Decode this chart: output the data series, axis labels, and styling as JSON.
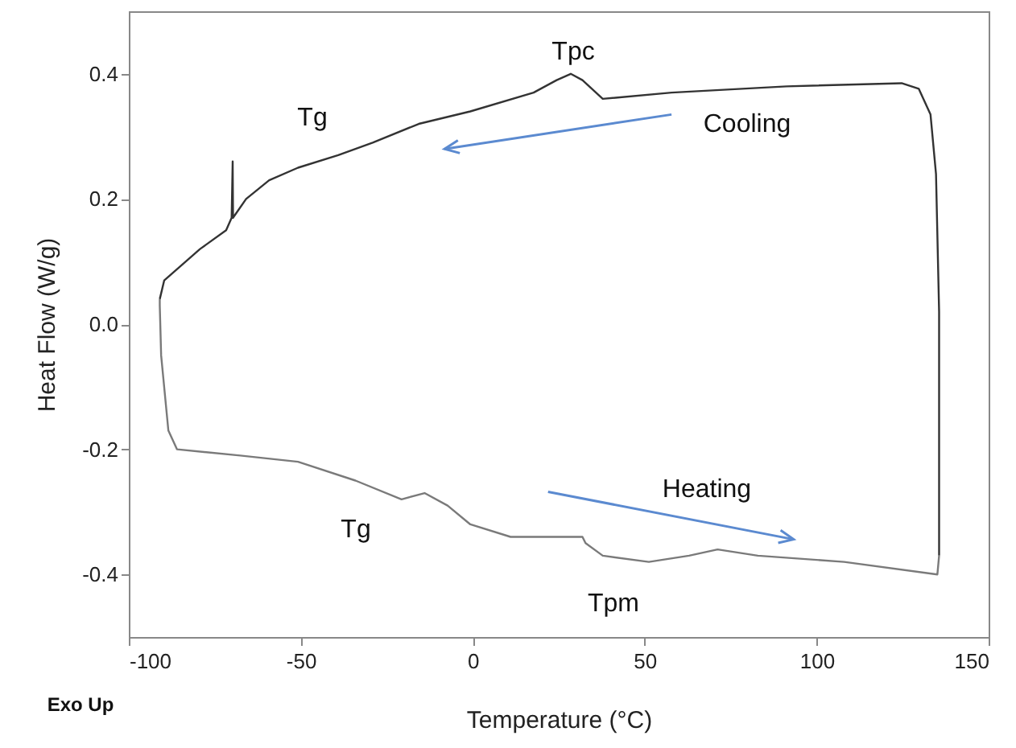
{
  "chart_data": {
    "type": "line",
    "xlabel": "Temperature (°C)",
    "ylabel": "Heat Flow (W/g)",
    "xlim": [
      -100,
      150
    ],
    "xticks": [
      -100,
      -50,
      0,
      50,
      100,
      150
    ],
    "ylim": [
      -0.5,
      0.5
    ],
    "yticks": [
      {
        "value": -0.4,
        "label": "-0.4"
      },
      {
        "value": -0.2,
        "label": "-0.2"
      },
      {
        "value": 0,
        "label": "0.0"
      },
      {
        "value": 0.2,
        "label": "0.2"
      },
      {
        "value": 0.4,
        "label": "0.4"
      }
    ],
    "grid": false,
    "marker": "none",
    "line_style": "solid",
    "series": [
      {
        "color": "#333333",
        "x": [
          -91.0,
          -89.7,
          -79.3,
          -71.7,
          -70.1,
          -69.8,
          -69.7,
          -65.9,
          -59.2,
          -50.8,
          -39.1,
          -29.1,
          -15.7,
          -0.7,
          17.7,
          24.4,
          28.5,
          31.9,
          37.8,
          57.8,
          91.3,
          124.7,
          129.7,
          133.1,
          134.7,
          135.6,
          135.6
        ],
        "values": [
          0.04,
          0.07,
          0.12,
          0.15,
          0.17,
          0.26,
          0.17,
          0.2,
          0.23,
          0.25,
          0.27,
          0.29,
          0.32,
          0.34,
          0.37,
          0.39,
          0.4,
          0.39,
          0.36,
          0.37,
          0.38,
          0.385,
          0.376,
          0.335,
          0.24,
          0.02,
          -0.37
        ]
      },
      {
        "color": "#7a7a7a",
        "x": [
          -91.0,
          -91.0,
          -90.6,
          -88.5,
          -86.0,
          -67.6,
          -50.8,
          -34.1,
          -20.7,
          -14.0,
          -7.3,
          -0.7,
          11.0,
          24.4,
          31.9,
          32.8,
          37.8,
          51.2,
          62.9,
          71.2,
          82.9,
          108.0,
          135.1,
          135.6
        ],
        "values": [
          0.04,
          0.03,
          -0.05,
          -0.17,
          -0.2,
          -0.21,
          -0.22,
          -0.25,
          -0.28,
          -0.27,
          -0.29,
          -0.32,
          -0.34,
          -0.34,
          -0.34,
          -0.35,
          -0.37,
          -0.38,
          -0.37,
          -0.36,
          -0.37,
          -0.38,
          -0.4,
          -0.37
        ]
      }
    ],
    "annotations": [
      "Tg",
      "Tpc",
      "Cooling",
      "Heating",
      "Tg",
      "Tpm",
      "Exo Up"
    ]
  }
}
